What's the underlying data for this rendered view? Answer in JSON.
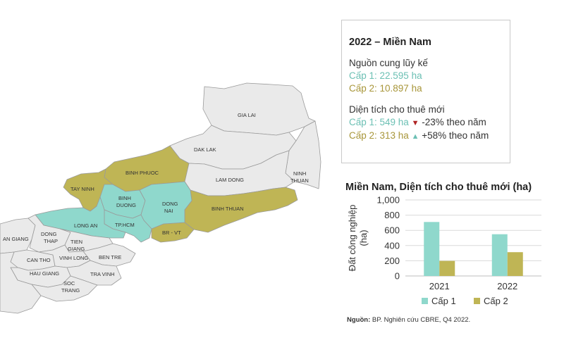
{
  "colors": {
    "cap1": "#8fd8cc",
    "cap1_text": "#6cc0b4",
    "cap2": "#bfb555",
    "cap2_text": "#a8963a",
    "map_grey": "#eaeaea",
    "border": "#c9c9c9",
    "down_arrow": "#b02424",
    "up_arrow": "#6cc0b4"
  },
  "map": {
    "labels": {
      "gia_lai": "GIA LAI",
      "dak_lak": "DAK LAK",
      "lam_dong": "LAM DONG",
      "ninh_thuan": "NINH\nTHUAN",
      "binh_phuoc": "BINH PHUOC",
      "tay_ninh": "TAY NINH",
      "binh_duong": "BINH\nDUONG",
      "dong_nai": "DONG\nNAI",
      "binh_thuan": "BINH THUAN",
      "long_an": "LONG AN",
      "tp_hcm": "TP.HCM",
      "br_vt": "BR - VT",
      "an_giang": "AN GIANG",
      "dong_thap": "DONG\nTHAP",
      "tien_giang": "TIEN\nGIANG",
      "can_tho": "CAN THO",
      "vinh_long": "VINH LONG",
      "ben_tre": "BEN TRE",
      "hau_giang": "HAU GIANG",
      "tra_vinh": "TRA VINH",
      "soc_trang": "SOC\nTRANG"
    }
  },
  "summary": {
    "title": "2022 – Miền Nam",
    "supply_heading": "Nguồn cung lũy kế",
    "supply_cap1": "Cấp 1: 22.595 ha",
    "supply_cap2": "Cấp 2: 10.897 ha",
    "leased_heading": "Diện tích cho thuê mới",
    "leased_cap1": "Cấp 1: 549 ha",
    "leased_cap1_arrow": "▼",
    "leased_cap1_change": "-23% theo năm",
    "leased_cap2": "Cấp 2: 313 ha",
    "leased_cap2_arrow": "▲",
    "leased_cap2_change": "+58% theo năm"
  },
  "chart_title": "Miền Nam, Diện tích cho thuê mới (ha)",
  "chart_data": {
    "type": "bar",
    "categories": [
      "2021",
      "2022"
    ],
    "series": [
      {
        "name": "Cấp 1",
        "values": [
          710,
          549
        ]
      },
      {
        "name": "Cấp 2",
        "values": [
          198,
          313
        ]
      }
    ],
    "ylabel": "Đất công nghiệp\n(ha)",
    "ylim": [
      0,
      1000
    ],
    "yticks": [
      0,
      200,
      400,
      600,
      800,
      1000
    ],
    "ytick_labels": [
      "0",
      "200",
      "400",
      "600",
      "800",
      "1,000"
    ],
    "legend_position": "bottom",
    "grid": true
  },
  "source": {
    "label": "Nguồn:",
    "text": " BP. Nghiên cứu CBRE, Q4 2022."
  }
}
